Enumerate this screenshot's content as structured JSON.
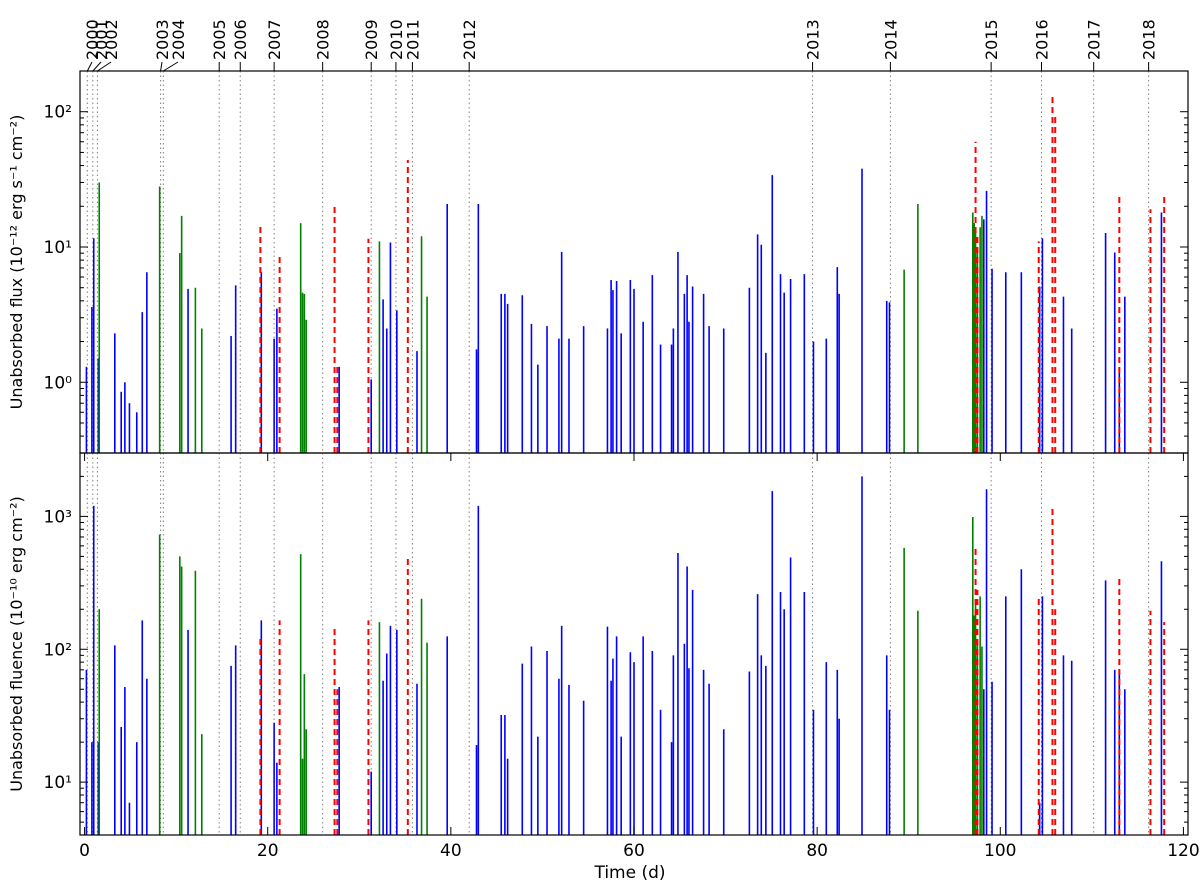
{
  "figure": {
    "background": "#ffffff"
  },
  "year_markers": [
    {
      "label": "2000",
      "t": 0.3
    },
    {
      "label": "2001",
      "t": 0.9
    },
    {
      "label": "2002",
      "t": 1.4
    },
    {
      "label": "2003",
      "t": 8.3
    },
    {
      "label": "2004",
      "t": 8.6
    },
    {
      "label": "2005",
      "t": 14.7
    },
    {
      "label": "2006",
      "t": 17.0
    },
    {
      "label": "2007",
      "t": 20.7
    },
    {
      "label": "2008",
      "t": 26.0
    },
    {
      "label": "2009",
      "t": 31.3
    },
    {
      "label": "2010",
      "t": 34.0
    },
    {
      "label": "2011",
      "t": 35.8
    },
    {
      "label": "2012",
      "t": 42.0
    },
    {
      "label": "2013",
      "t": 79.5
    },
    {
      "label": "2014",
      "t": 88.0
    },
    {
      "label": "2015",
      "t": 99.0
    },
    {
      "label": "2016",
      "t": 104.5
    },
    {
      "label": "2017",
      "t": 110.2
    },
    {
      "label": "2018",
      "t": 116.2
    }
  ],
  "colors": {
    "blue": "#0000ff",
    "green": "#008000",
    "red": "#ff0000",
    "year_line": "#808080"
  },
  "chart_data": [
    {
      "type": "bar",
      "xlabel": "",
      "ylabel": "Unabsorbed flux (10⁻¹² erg s⁻¹ cm⁻²)",
      "yscale": "log",
      "xlim": [
        -0.5,
        120.5
      ],
      "ylim": [
        0.3,
        200
      ],
      "yticks": [
        {
          "value": 1,
          "label": "10⁰"
        },
        {
          "value": 10,
          "label": "10¹"
        },
        {
          "value": 100,
          "label": "10²"
        }
      ],
      "series": [
        {
          "color": "blue",
          "style": "solid",
          "points": [
            [
              0.2,
              1.3
            ],
            [
              0.8,
              3.6
            ],
            [
              1.0,
              11.6
            ],
            [
              1.5,
              1.5
            ],
            [
              3.3,
              2.3
            ],
            [
              4.0,
              0.85
            ],
            [
              4.4,
              1.0
            ],
            [
              4.9,
              0.7
            ],
            [
              5.7,
              0.6
            ],
            [
              6.3,
              3.3
            ],
            [
              6.8,
              6.5
            ],
            [
              11.3,
              4.9
            ],
            [
              16.0,
              2.2
            ],
            [
              16.5,
              5.2
            ],
            [
              19.3,
              6.5
            ],
            [
              20.7,
              2.1
            ],
            [
              21.0,
              3.5
            ],
            [
              27.8,
              1.3
            ],
            [
              31.3,
              1.05
            ],
            [
              32.6,
              4.1
            ],
            [
              33.0,
              2.5
            ],
            [
              33.4,
              10.8
            ],
            [
              34.1,
              3.4
            ],
            [
              36.3,
              1.7
            ],
            [
              39.6,
              20.8
            ],
            [
              42.8,
              1.75
            ],
            [
              43.0,
              20.8
            ],
            [
              45.5,
              4.5
            ],
            [
              45.9,
              4.5
            ],
            [
              46.2,
              3.8
            ],
            [
              47.8,
              4.4
            ],
            [
              48.8,
              2.7
            ],
            [
              49.5,
              1.35
            ],
            [
              50.5,
              2.6
            ],
            [
              51.8,
              2.1
            ],
            [
              52.1,
              9.2
            ],
            [
              52.9,
              2.1
            ],
            [
              54.5,
              2.6
            ],
            [
              57.1,
              2.5
            ],
            [
              57.5,
              5.7
            ],
            [
              57.7,
              4.8
            ],
            [
              58.1,
              5.6
            ],
            [
              58.6,
              2.3
            ],
            [
              59.6,
              5.7
            ],
            [
              60.0,
              4.9
            ],
            [
              61.0,
              2.8
            ],
            [
              62.0,
              6.2
            ],
            [
              62.9,
              1.9
            ],
            [
              64.1,
              1.9
            ],
            [
              64.3,
              2.5
            ],
            [
              64.8,
              9.2
            ],
            [
              65.5,
              4.5
            ],
            [
              65.8,
              6.2
            ],
            [
              66.0,
              2.8
            ],
            [
              66.4,
              5.1
            ],
            [
              67.6,
              4.5
            ],
            [
              68.2,
              2.6
            ],
            [
              69.8,
              2.5
            ],
            [
              72.6,
              5.0
            ],
            [
              73.5,
              12.4
            ],
            [
              73.9,
              10.4
            ],
            [
              74.4,
              1.65
            ],
            [
              75.1,
              34.0
            ],
            [
              76.0,
              6.3
            ],
            [
              76.4,
              4.6
            ],
            [
              77.1,
              5.8
            ],
            [
              78.6,
              6.3
            ],
            [
              79.6,
              2.0
            ],
            [
              81.0,
              2.1
            ],
            [
              82.2,
              7.1
            ],
            [
              82.4,
              4.5
            ],
            [
              84.9,
              38.0
            ],
            [
              87.6,
              4.0
            ],
            [
              87.9,
              3.9
            ],
            [
              98.2,
              16.0
            ],
            [
              98.5,
              26.0
            ],
            [
              99.1,
              6.9
            ],
            [
              100.6,
              6.5
            ],
            [
              102.3,
              6.5
            ],
            [
              104.3,
              5.1
            ],
            [
              104.6,
              11.6
            ],
            [
              106.9,
              4.3
            ],
            [
              107.8,
              2.5
            ],
            [
              111.5,
              12.7
            ],
            [
              112.5,
              9.1
            ],
            [
              113.0,
              1.2
            ],
            [
              113.6,
              4.3
            ],
            [
              117.6,
              18.0
            ]
          ]
        },
        {
          "color": "green",
          "style": "solid",
          "points": [
            [
              1.6,
              30.0
            ],
            [
              8.2,
              28.0
            ],
            [
              10.4,
              9.0
            ],
            [
              10.6,
              17.0
            ],
            [
              12.1,
              5.0
            ],
            [
              12.8,
              2.5
            ],
            [
              23.6,
              15.0
            ],
            [
              23.8,
              4.6
            ],
            [
              24.0,
              4.5
            ],
            [
              24.2,
              2.9
            ],
            [
              32.2,
              11.0
            ],
            [
              36.8,
              12.0
            ],
            [
              37.4,
              4.3
            ],
            [
              89.5,
              6.8
            ],
            [
              91.0,
              20.8
            ],
            [
              97.0,
              18.0
            ],
            [
              97.15,
              15.0
            ],
            [
              97.3,
              14.0
            ],
            [
              97.5,
              10.0
            ],
            [
              97.8,
              14.0
            ],
            [
              98.0,
              17.0
            ]
          ]
        },
        {
          "color": "red",
          "style": "dashed",
          "points": [
            [
              19.2,
              15.0
            ],
            [
              21.3,
              9.0
            ],
            [
              27.3,
              20.0
            ],
            [
              27.6,
              1.3
            ],
            [
              31.0,
              11.5
            ],
            [
              35.3,
              44.0
            ],
            [
              97.3,
              60.0
            ],
            [
              97.5,
              12.0
            ],
            [
              104.2,
              11.0
            ],
            [
              105.7,
              130.0
            ],
            [
              106.0,
              92.0
            ],
            [
              113.0,
              25.0
            ],
            [
              116.4,
              19.0
            ],
            [
              117.9,
              24.0
            ]
          ]
        }
      ]
    },
    {
      "type": "bar",
      "xlabel": "Time (d)",
      "ylabel": "Unabsorbed fluence (10⁻¹⁰ erg cm⁻²)",
      "yscale": "log",
      "xlim": [
        -0.5,
        120.5
      ],
      "ylim": [
        4,
        3000
      ],
      "xticks": [
        0,
        20,
        40,
        60,
        80,
        100,
        120
      ],
      "yticks": [
        {
          "value": 10,
          "label": "10¹"
        },
        {
          "value": 100,
          "label": "10²"
        },
        {
          "value": 1000,
          "label": "10³"
        }
      ],
      "series": [
        {
          "color": "blue",
          "style": "solid",
          "points": [
            [
              0.2,
              70
            ],
            [
              0.8,
              20
            ],
            [
              1.0,
              1200
            ],
            [
              1.5,
              20
            ],
            [
              3.3,
              107
            ],
            [
              4.0,
              26
            ],
            [
              4.4,
              52
            ],
            [
              4.9,
              7
            ],
            [
              5.7,
              20
            ],
            [
              6.3,
              165
            ],
            [
              6.8,
              60
            ],
            [
              11.3,
              140
            ],
            [
              16.0,
              75
            ],
            [
              16.5,
              107
            ],
            [
              19.3,
              165
            ],
            [
              20.7,
              28
            ],
            [
              21.0,
              14
            ],
            [
              27.8,
              52
            ],
            [
              31.3,
              12
            ],
            [
              32.6,
              58
            ],
            [
              33.0,
              93
            ],
            [
              33.4,
              150
            ],
            [
              34.1,
              140
            ],
            [
              36.3,
              55
            ],
            [
              39.6,
              125
            ],
            [
              42.8,
              19
            ],
            [
              43.0,
              1200
            ],
            [
              45.5,
              32
            ],
            [
              45.9,
              32
            ],
            [
              46.2,
              15
            ],
            [
              47.8,
              78
            ],
            [
              48.8,
              105
            ],
            [
              49.5,
              22
            ],
            [
              50.5,
              97
            ],
            [
              51.8,
              60
            ],
            [
              52.1,
              150
            ],
            [
              52.9,
              54
            ],
            [
              54.5,
              41
            ],
            [
              57.1,
              148
            ],
            [
              57.5,
              58
            ],
            [
              57.7,
              85
            ],
            [
              58.1,
              125
            ],
            [
              58.6,
              22
            ],
            [
              59.6,
              95
            ],
            [
              60.0,
              80
            ],
            [
              61.0,
              125
            ],
            [
              62.0,
              97
            ],
            [
              62.9,
              35
            ],
            [
              64.1,
              20
            ],
            [
              64.3,
              90
            ],
            [
              64.8,
              530
            ],
            [
              65.5,
              110
            ],
            [
              65.8,
              420
            ],
            [
              66.0,
              72
            ],
            [
              66.4,
              280
            ],
            [
              67.6,
              70
            ],
            [
              68.2,
              55
            ],
            [
              69.8,
              25
            ],
            [
              72.6,
              68
            ],
            [
              73.5,
              260
            ],
            [
              73.9,
              90
            ],
            [
              74.4,
              75
            ],
            [
              75.1,
              1550
            ],
            [
              76.0,
              270
            ],
            [
              76.4,
              200
            ],
            [
              77.1,
              490
            ],
            [
              78.6,
              270
            ],
            [
              79.6,
              35
            ],
            [
              81.0,
              80
            ],
            [
              82.2,
              70
            ],
            [
              82.4,
              30
            ],
            [
              84.9,
              2000
            ],
            [
              87.6,
              90
            ],
            [
              87.9,
              35
            ],
            [
              98.2,
              50
            ],
            [
              98.5,
              1600
            ],
            [
              99.1,
              57
            ],
            [
              100.6,
              250
            ],
            [
              102.3,
              400
            ],
            [
              104.3,
              7
            ],
            [
              104.6,
              250
            ],
            [
              106.9,
              90
            ],
            [
              107.8,
              82
            ],
            [
              111.5,
              330
            ],
            [
              112.5,
              70
            ],
            [
              113.0,
              70
            ],
            [
              113.6,
              50
            ],
            [
              117.6,
              460
            ]
          ]
        },
        {
          "color": "green",
          "style": "solid",
          "points": [
            [
              1.6,
              200
            ],
            [
              8.2,
              730
            ],
            [
              10.4,
              500
            ],
            [
              10.6,
              420
            ],
            [
              12.1,
              390
            ],
            [
              12.8,
              23
            ],
            [
              23.6,
              520
            ],
            [
              23.8,
              15
            ],
            [
              24.0,
              65
            ],
            [
              24.2,
              25
            ],
            [
              32.2,
              160
            ],
            [
              36.8,
              240
            ],
            [
              37.4,
              112
            ],
            [
              89.5,
              580
            ],
            [
              91.0,
              195
            ],
            [
              97.0,
              990
            ],
            [
              97.15,
              180
            ],
            [
              97.3,
              220
            ],
            [
              97.5,
              110
            ],
            [
              97.8,
              250
            ],
            [
              98.0,
              105
            ]
          ]
        },
        {
          "color": "red",
          "style": "dashed",
          "points": [
            [
              19.2,
              120
            ],
            [
              21.3,
              165
            ],
            [
              27.3,
              145
            ],
            [
              27.6,
              50
            ],
            [
              31.0,
              165
            ],
            [
              35.3,
              500
            ],
            [
              97.3,
              580
            ],
            [
              97.5,
              280
            ],
            [
              104.2,
              245
            ],
            [
              105.7,
              1150
            ],
            [
              106.0,
              200
            ],
            [
              113.0,
              360
            ],
            [
              116.4,
              195
            ],
            [
              117.9,
              160
            ]
          ]
        }
      ]
    }
  ]
}
